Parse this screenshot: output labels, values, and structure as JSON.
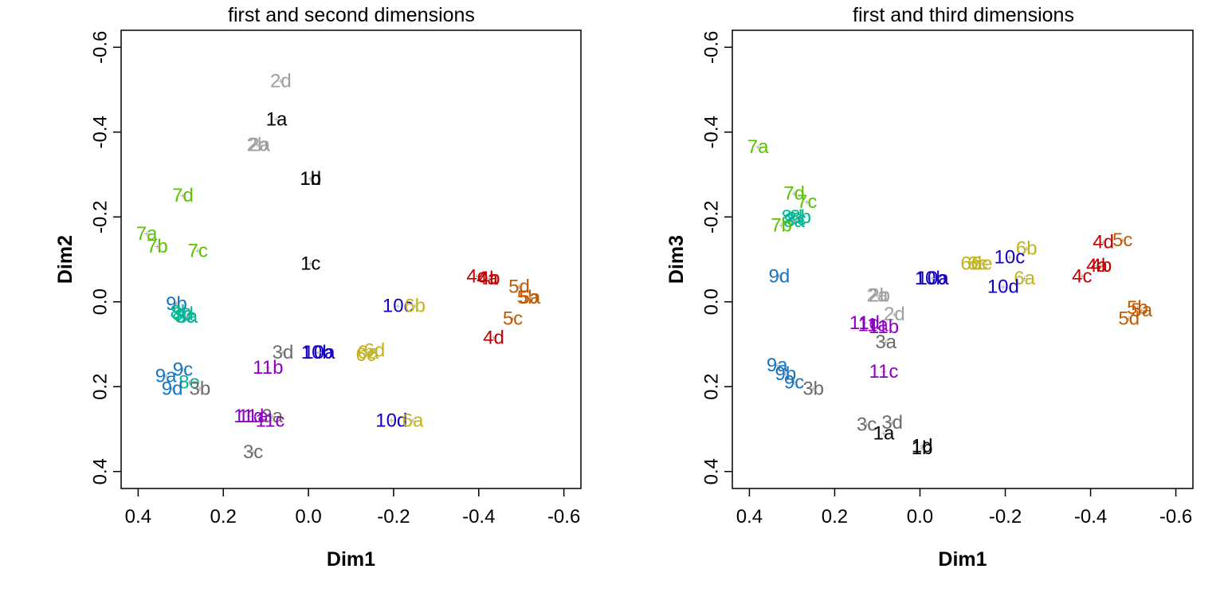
{
  "colors": {
    "1": "#000000",
    "2": "#9E9E9E",
    "3": "#6B6B6B",
    "4": "#C00000",
    "5": "#C25A00",
    "6": "#C2B31A",
    "7": "#5CC100",
    "8": "#00B894",
    "9": "#1774C0",
    "10": "#1400C2",
    "11": "#8E00C2"
  },
  "chart_data": [
    {
      "type": "scatter",
      "title": "first and second dimensions",
      "xlabel": "Dim1",
      "ylabel": "Dim2",
      "xlim": [
        0.4,
        -0.6
      ],
      "ylim": [
        -0.6,
        0.4
      ],
      "x_reversed": true,
      "y_reversed": true,
      "xticks": [
        "0.4",
        "0.2",
        "0.0",
        "-0.2",
        "-0.4",
        "-0.6"
      ],
      "yticks": [
        "-0.6",
        "-0.4",
        "-0.2",
        "0.0",
        "0.2",
        "0.4"
      ],
      "points": [
        {
          "label": "2d",
          "group": 2,
          "x": 0.065,
          "y": -0.52
        },
        {
          "label": "1a",
          "group": 1,
          "x": 0.075,
          "y": -0.43
        },
        {
          "label": "2a",
          "group": 2,
          "x": 0.115,
          "y": -0.37
        },
        {
          "label": "2b",
          "group": 2,
          "x": 0.12,
          "y": -0.37
        },
        {
          "label": "1d",
          "group": 1,
          "x": -0.005,
          "y": -0.29
        },
        {
          "label": "1b",
          "group": 1,
          "x": -0.005,
          "y": -0.29
        },
        {
          "label": "7d",
          "group": 7,
          "x": 0.295,
          "y": -0.25
        },
        {
          "label": "7a",
          "group": 7,
          "x": 0.38,
          "y": -0.16
        },
        {
          "label": "7b",
          "group": 7,
          "x": 0.355,
          "y": -0.13
        },
        {
          "label": "7c",
          "group": 7,
          "x": 0.26,
          "y": -0.12
        },
        {
          "label": "1c",
          "group": 1,
          "x": -0.005,
          "y": -0.09
        },
        {
          "label": "4c",
          "group": 4,
          "x": -0.395,
          "y": -0.06
        },
        {
          "label": "4a",
          "group": 4,
          "x": -0.42,
          "y": -0.055
        },
        {
          "label": "4b",
          "group": 4,
          "x": -0.425,
          "y": -0.055
        },
        {
          "label": "5d",
          "group": 5,
          "x": -0.495,
          "y": -0.035
        },
        {
          "label": "5b",
          "group": 5,
          "x": -0.515,
          "y": -0.01
        },
        {
          "label": "5a",
          "group": 5,
          "x": -0.52,
          "y": -0.01
        },
        {
          "label": "10c",
          "group": 10,
          "x": -0.21,
          "y": 0.01
        },
        {
          "label": "6b",
          "group": 6,
          "x": -0.25,
          "y": 0.01
        },
        {
          "label": "9b",
          "group": 9,
          "x": 0.31,
          "y": 0.005
        },
        {
          "label": "8b",
          "group": 8,
          "x": 0.3,
          "y": 0.025
        },
        {
          "label": "8d",
          "group": 8,
          "x": 0.295,
          "y": 0.03
        },
        {
          "label": "8c",
          "group": 8,
          "x": 0.29,
          "y": 0.035
        },
        {
          "label": "8a",
          "group": 8,
          "x": 0.285,
          "y": 0.035
        },
        {
          "label": "5c",
          "group": 5,
          "x": -0.48,
          "y": 0.04
        },
        {
          "label": "4d",
          "group": 4,
          "x": -0.435,
          "y": 0.085
        },
        {
          "label": "10b",
          "group": 10,
          "x": -0.02,
          "y": 0.12
        },
        {
          "label": "10a",
          "group": 10,
          "x": -0.025,
          "y": 0.12
        },
        {
          "label": "6d",
          "group": 6,
          "x": -0.155,
          "y": 0.115
        },
        {
          "label": "6a",
          "group": 6,
          "x": -0.14,
          "y": 0.12
        },
        {
          "label": "6c",
          "group": 6,
          "x": -0.135,
          "y": 0.125
        },
        {
          "label": "3d",
          "group": 3,
          "x": 0.06,
          "y": 0.12
        },
        {
          "label": "11b",
          "group": 11,
          "x": 0.095,
          "y": 0.155
        },
        {
          "label": "9c",
          "group": 9,
          "x": 0.295,
          "y": 0.16
        },
        {
          "label": "9a",
          "group": 9,
          "x": 0.335,
          "y": 0.175
        },
        {
          "label": "8e",
          "group": 8,
          "x": 0.28,
          "y": 0.19
        },
        {
          "label": "3b",
          "group": 3,
          "x": 0.255,
          "y": 0.205
        },
        {
          "label": "9d",
          "group": 9,
          "x": 0.32,
          "y": 0.205
        },
        {
          "label": "11d",
          "group": 11,
          "x": 0.14,
          "y": 0.27
        },
        {
          "label": "11a",
          "group": 11,
          "x": 0.13,
          "y": 0.27
        },
        {
          "label": "3a",
          "group": 3,
          "x": 0.085,
          "y": 0.27
        },
        {
          "label": "11c",
          "group": 11,
          "x": 0.09,
          "y": 0.28
        },
        {
          "label": "10d",
          "group": 10,
          "x": -0.195,
          "y": 0.28
        },
        {
          "label": "6a",
          "group": 6,
          "x": -0.245,
          "y": 0.28
        },
        {
          "label": "3c",
          "group": 3,
          "x": 0.13,
          "y": 0.355
        }
      ]
    },
    {
      "type": "scatter",
      "title": "first and third dimensions",
      "xlabel": "Dim1",
      "ylabel": "Dim3",
      "xlim": [
        0.4,
        -0.6
      ],
      "ylim": [
        -0.6,
        0.4
      ],
      "x_reversed": true,
      "y_reversed": true,
      "xticks": [
        "0.4",
        "0.2",
        "0.0",
        "-0.2",
        "-0.4",
        "-0.6"
      ],
      "yticks": [
        "-0.6",
        "-0.4",
        "-0.2",
        "0.0",
        "0.2",
        "0.4"
      ],
      "points": [
        {
          "label": "7a",
          "group": 7,
          "x": 0.38,
          "y": -0.365
        },
        {
          "label": "7d",
          "group": 7,
          "x": 0.295,
          "y": -0.255
        },
        {
          "label": "7c",
          "group": 7,
          "x": 0.265,
          "y": -0.235
        },
        {
          "label": "8d",
          "group": 8,
          "x": 0.3,
          "y": -0.2
        },
        {
          "label": "8b",
          "group": 8,
          "x": 0.28,
          "y": -0.2
        },
        {
          "label": "8c",
          "group": 8,
          "x": 0.29,
          "y": -0.195
        },
        {
          "label": "8a",
          "group": 8,
          "x": 0.295,
          "y": -0.19
        },
        {
          "label": "7b",
          "group": 7,
          "x": 0.325,
          "y": -0.18
        },
        {
          "label": "4d",
          "group": 4,
          "x": -0.43,
          "y": -0.14
        },
        {
          "label": "5c",
          "group": 5,
          "x": -0.475,
          "y": -0.145
        },
        {
          "label": "6b",
          "group": 6,
          "x": -0.25,
          "y": -0.125
        },
        {
          "label": "10c",
          "group": 10,
          "x": -0.21,
          "y": -0.105
        },
        {
          "label": "6d",
          "group": 6,
          "x": -0.12,
          "y": -0.09
        },
        {
          "label": "6c",
          "group": 6,
          "x": -0.135,
          "y": -0.09
        },
        {
          "label": "6e",
          "group": 6,
          "x": -0.145,
          "y": -0.09
        },
        {
          "label": "4a",
          "group": 4,
          "x": -0.415,
          "y": -0.085
        },
        {
          "label": "4b",
          "group": 4,
          "x": -0.425,
          "y": -0.085
        },
        {
          "label": "4c",
          "group": 4,
          "x": -0.38,
          "y": -0.06
        },
        {
          "label": "9d",
          "group": 9,
          "x": 0.33,
          "y": -0.06
        },
        {
          "label": "10b",
          "group": 10,
          "x": -0.025,
          "y": -0.055
        },
        {
          "label": "10a",
          "group": 10,
          "x": -0.03,
          "y": -0.055
        },
        {
          "label": "6a",
          "group": 6,
          "x": -0.245,
          "y": -0.055
        },
        {
          "label": "10d",
          "group": 10,
          "x": -0.195,
          "y": -0.035
        },
        {
          "label": "2a",
          "group": 2,
          "x": 0.1,
          "y": -0.015
        },
        {
          "label": "2b",
          "group": 2,
          "x": 0.095,
          "y": -0.015
        },
        {
          "label": "5b",
          "group": 5,
          "x": -0.51,
          "y": 0.015
        },
        {
          "label": "5a",
          "group": 5,
          "x": -0.52,
          "y": 0.02
        },
        {
          "label": "2d",
          "group": 2,
          "x": 0.06,
          "y": 0.03
        },
        {
          "label": "5d",
          "group": 5,
          "x": -0.49,
          "y": 0.04
        },
        {
          "label": "11d",
          "group": 11,
          "x": 0.13,
          "y": 0.05
        },
        {
          "label": "11a",
          "group": 11,
          "x": 0.11,
          "y": 0.055
        },
        {
          "label": "11b",
          "group": 11,
          "x": 0.085,
          "y": 0.06
        },
        {
          "label": "3a",
          "group": 3,
          "x": 0.08,
          "y": 0.095
        },
        {
          "label": "9a",
          "group": 9,
          "x": 0.335,
          "y": 0.15
        },
        {
          "label": "11c",
          "group": 11,
          "x": 0.085,
          "y": 0.165
        },
        {
          "label": "9b",
          "group": 9,
          "x": 0.315,
          "y": 0.17
        },
        {
          "label": "9c",
          "group": 9,
          "x": 0.295,
          "y": 0.19
        },
        {
          "label": "3b",
          "group": 3,
          "x": 0.25,
          "y": 0.205
        },
        {
          "label": "3d",
          "group": 3,
          "x": 0.065,
          "y": 0.285
        },
        {
          "label": "3c",
          "group": 3,
          "x": 0.125,
          "y": 0.29
        },
        {
          "label": "1a",
          "group": 1,
          "x": 0.085,
          "y": 0.31
        },
        {
          "label": "1d",
          "group": 1,
          "x": -0.005,
          "y": 0.34
        },
        {
          "label": "1b",
          "group": 1,
          "x": -0.005,
          "y": 0.345
        }
      ]
    }
  ]
}
